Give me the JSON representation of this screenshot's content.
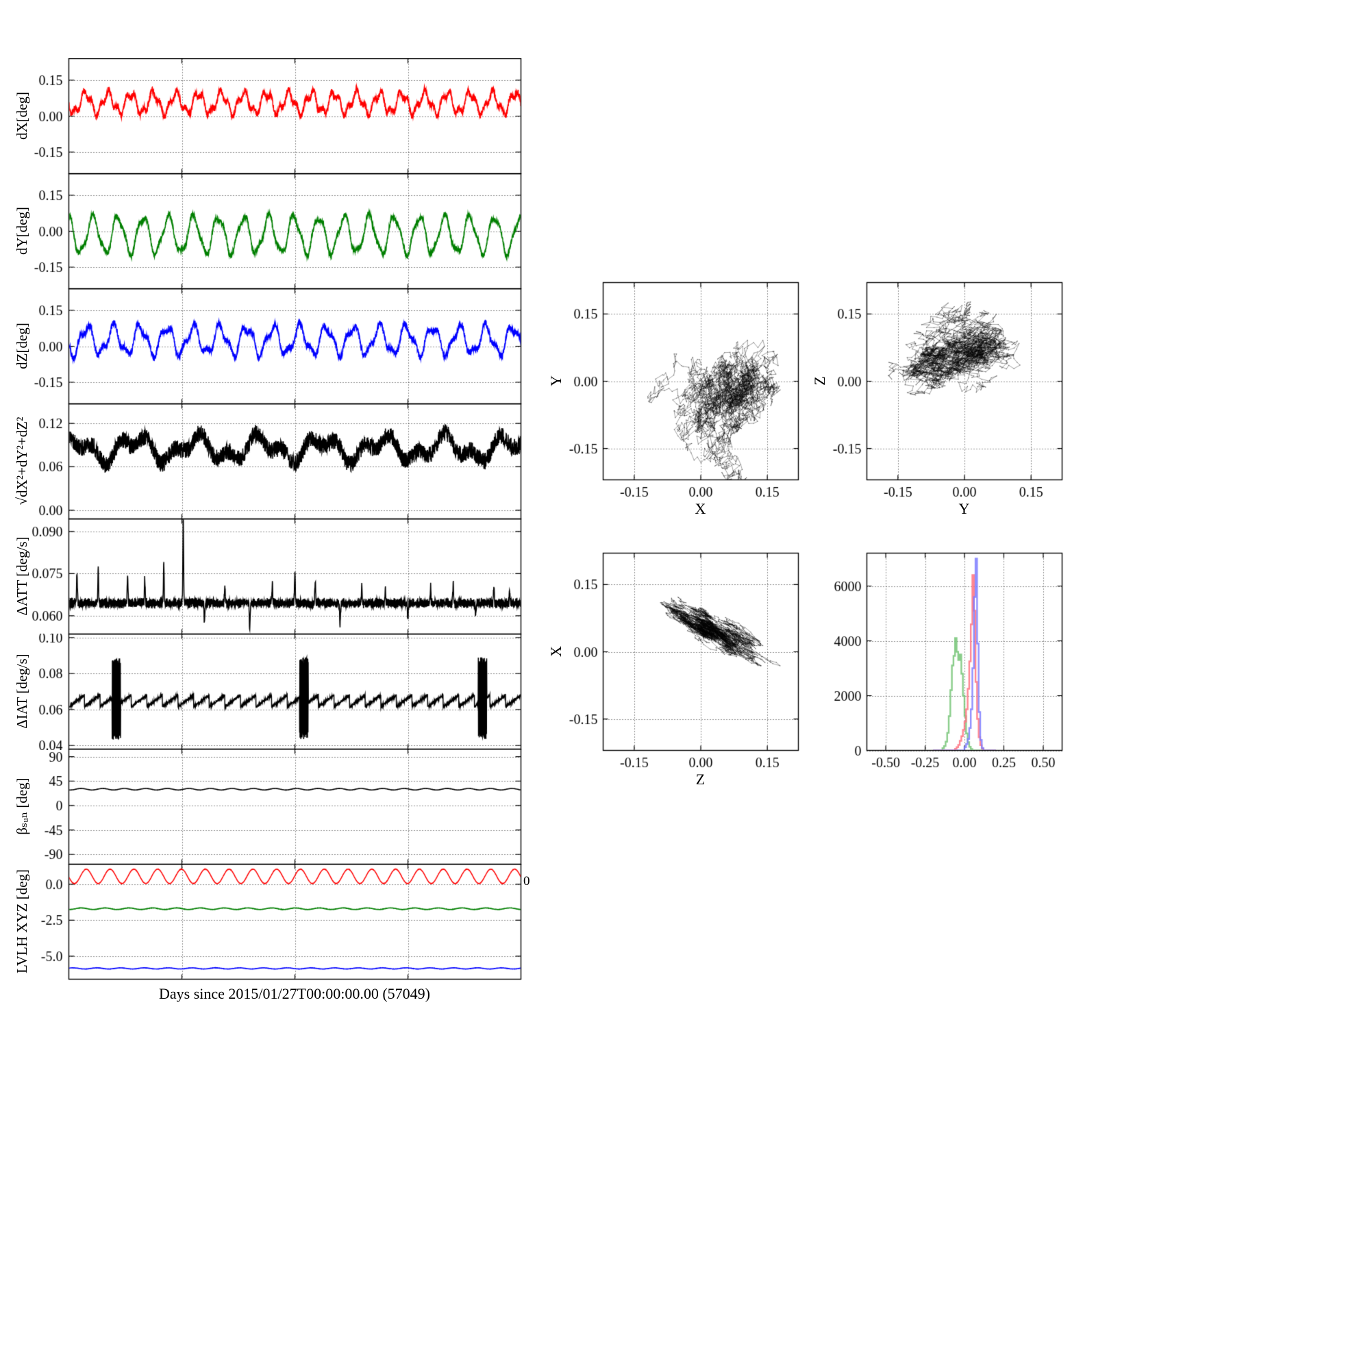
{
  "figure": {
    "xlabel_time": "Days since 2015/01/27T00:00:00.00 (57049)",
    "background": "#ffffff"
  },
  "chart_data": {
    "type": "multi-panel",
    "description": "Attitude difference time series (8 stacked panels), 3 scatter projections, 1 histogram",
    "time_panels": [
      {
        "name": "dX",
        "ylabel": "dX[deg]",
        "ylim": [
          -0.24,
          0.24
        ],
        "yticks": [
          [
            0.15,
            "0.15"
          ],
          [
            0.0,
            "0.00"
          ],
          [
            -0.15,
            "-0.15"
          ]
        ],
        "series": [
          {
            "name": "dX",
            "color": "#ff0000",
            "gen": {
              "type": "osc",
              "seed": 11,
              "base": 0.055,
              "amp": 0.04,
              "cycles": 20,
              "amp2": 0.018,
              "cycles2": 53,
              "noise": 0.012
            }
          }
        ]
      },
      {
        "name": "dY",
        "ylabel": "dY[deg]",
        "ylim": [
          -0.24,
          0.24
        ],
        "yticks": [
          [
            0.15,
            "0.15"
          ],
          [
            0.0,
            "0.00"
          ],
          [
            -0.15,
            "-0.15"
          ]
        ],
        "series": [
          {
            "name": "dY",
            "color": "#007f00",
            "gen": {
              "type": "osc",
              "seed": 12,
              "base": -0.015,
              "amp": 0.075,
              "cycles": 18,
              "amp2": 0.015,
              "cycles2": 41,
              "noise": 0.01
            }
          }
        ]
      },
      {
        "name": "dZ",
        "ylabel": "dZ[deg]",
        "ylim": [
          -0.24,
          0.24
        ],
        "yticks": [
          [
            0.15,
            "0.15"
          ],
          [
            0.0,
            "0.00"
          ],
          [
            -0.15,
            "-0.15"
          ]
        ],
        "series": [
          {
            "name": "dZ",
            "color": "#0000ff",
            "gen": {
              "type": "osc",
              "seed": 13,
              "base": 0.025,
              "amp": 0.055,
              "cycles": 17,
              "amp2": 0.02,
              "cycles2": 39,
              "noise": 0.012
            }
          }
        ]
      },
      {
        "name": "magnitude",
        "ylabel": "√dX²+dY²+dZ²",
        "ylim": [
          -0.012,
          0.147
        ],
        "yticks": [
          [
            0.12,
            "0.12"
          ],
          [
            0.06,
            "0.06"
          ],
          [
            0.0,
            "0.00"
          ]
        ],
        "series": [
          {
            "name": "magnitude",
            "color": "#000000",
            "gen": {
              "type": "band",
              "seed": 17,
              "base": 0.085,
              "noise": 0.012,
              "w1": 0.013,
              "c1": 7.3,
              "w2": 0.009,
              "c2": 16.7
            }
          }
        ]
      },
      {
        "name": "delta-att",
        "ylabel": "ΔATT [deg/s]",
        "ylim": [
          0.0535,
          0.0945
        ],
        "yticks": [
          [
            0.09,
            "0.090"
          ],
          [
            0.075,
            "0.075"
          ],
          [
            0.06,
            "0.060"
          ]
        ],
        "series": [
          {
            "name": "dATT",
            "color": "#000000",
            "gen": {
              "type": "spiky",
              "seed": 23,
              "base": 0.0645,
              "noise": 0.001,
              "ripple": 0.0009,
              "rippleC": 420,
              "spikeW": 0.0012,
              "spikes": [
                [
                  0.018,
                  0.011
                ],
                [
                  0.065,
                  0.012
                ],
                [
                  0.13,
                  0.01
                ],
                [
                  0.168,
                  0.009
                ],
                [
                  0.21,
                  0.014
                ],
                [
                  0.253,
                  0.03
                ],
                [
                  0.3,
                  -0.007
                ],
                [
                  0.345,
                  0.006
                ],
                [
                  0.4,
                  -0.01
                ],
                [
                  0.45,
                  0.007
                ],
                [
                  0.5,
                  0.012
                ],
                [
                  0.545,
                  0.008
                ],
                [
                  0.6,
                  -0.008
                ],
                [
                  0.648,
                  0.006
                ],
                [
                  0.7,
                  0.005
                ],
                [
                  0.75,
                  -0.006
                ],
                [
                  0.8,
                  0.006
                ],
                [
                  0.85,
                  0.007
                ],
                [
                  0.9,
                  -0.005
                ],
                [
                  0.94,
                  0.006
                ],
                [
                  0.975,
                  0.005
                ]
              ]
            }
          }
        ]
      },
      {
        "name": "delta-iat",
        "ylabel": "ΔIAT [deg/s]",
        "ylim": [
          0.038,
          0.102
        ],
        "yticks": [
          [
            0.1,
            "0.10"
          ],
          [
            0.08,
            "0.08"
          ],
          [
            0.06,
            "0.06"
          ],
          [
            0.04,
            "0.04"
          ]
        ],
        "series": [
          {
            "name": "dIAT",
            "color": "#000000",
            "gen": {
              "type": "sawburst",
              "seed": 29,
              "base": 0.0615,
              "tooth": 0.0065,
              "period": 0.0345,
              "noise": 0.0006,
              "bursts": [
                0.105,
                0.52,
                0.915
              ],
              "burstW": 0.0095,
              "lo": 0.0435,
              "hi": 0.089
            }
          }
        ]
      },
      {
        "name": "beta-sun",
        "ylabel": "βₛᵤₙ [deg]",
        "ylim": [
          -108,
          104
        ],
        "yticks": [
          [
            90,
            "90"
          ],
          [
            45,
            "45"
          ],
          [
            0,
            "0"
          ],
          [
            -45,
            "-45"
          ],
          [
            -90,
            "-90"
          ]
        ],
        "series": [
          {
            "name": "beta_sun",
            "color": "#000000",
            "gen": {
              "type": "osc",
              "seed": 31,
              "base": 30,
              "amp": 1.4,
              "cycles": 21,
              "amp2": 0,
              "cycles2": 0,
              "noise": 0.15
            }
          }
        ]
      },
      {
        "name": "lvlh-xyz",
        "ylabel": "LVLH XYZ [deg]",
        "ylim": [
          -6.6,
          1.4
        ],
        "yticks": [
          [
            0.0,
            "0.0"
          ],
          [
            -2.5,
            "-2.5"
          ],
          [
            -5.0,
            "-5.0"
          ]
        ],
        "right_label": "0",
        "series": [
          {
            "name": "lvlh_x",
            "color": "#ff0000",
            "gen": {
              "type": "osc",
              "seed": 37,
              "base": 0.55,
              "amp": 0.5,
              "cycles": 19,
              "amp2": 0,
              "cycles2": 0,
              "noise": 0.012
            }
          },
          {
            "name": "lvlh_y",
            "color": "#007f00",
            "gen": {
              "type": "osc",
              "seed": 38,
              "base": -1.7,
              "amp": 0.055,
              "cycles": 19,
              "amp2": 0,
              "cycles2": 0,
              "noise": 0.01
            }
          },
          {
            "name": "lvlh_z",
            "color": "#0000ff",
            "gen": {
              "type": "osc",
              "seed": 39,
              "base": -5.85,
              "amp": 0.04,
              "cycles": 19,
              "amp2": 0,
              "cycles2": 0,
              "noise": 0.008
            }
          }
        ]
      }
    ],
    "scatter_panels": [
      {
        "name": "y-vs-x",
        "xlabel": "X",
        "ylabel": "Y",
        "xlim": [
          -0.22,
          0.22
        ],
        "ylim": [
          -0.22,
          0.22
        ],
        "xticks": [
          [
            -0.15,
            "-0.15"
          ],
          [
            0.0,
            "0.00"
          ],
          [
            0.15,
            "0.15"
          ]
        ],
        "yticks": [
          [
            0.15,
            "0.15"
          ],
          [
            0.0,
            "0.00"
          ],
          [
            -0.15,
            "-0.15"
          ]
        ],
        "cluster": {
          "seed": 41,
          "cx": 0.055,
          "cy": -0.04,
          "su": 0.055,
          "sv": 0.04,
          "angle": 75,
          "n": 2800,
          "color": "#000000"
        }
      },
      {
        "name": "z-vs-y",
        "xlabel": "Y",
        "ylabel": "Z",
        "xlim": [
          -0.22,
          0.22
        ],
        "ylim": [
          -0.22,
          0.22
        ],
        "xticks": [
          [
            -0.15,
            "-0.15"
          ],
          [
            0.0,
            "0.00"
          ],
          [
            0.15,
            "0.15"
          ]
        ],
        "yticks": [
          [
            0.15,
            "0.15"
          ],
          [
            0.0,
            "0.00"
          ],
          [
            -0.15,
            "-0.15"
          ]
        ],
        "cluster": {
          "seed": 43,
          "cx": -0.025,
          "cy": 0.05,
          "su": 0.06,
          "sv": 0.038,
          "angle": 15,
          "n": 2800,
          "color": "#000000"
        }
      },
      {
        "name": "x-vs-z",
        "xlabel": "Z",
        "ylabel": "X",
        "xlim": [
          -0.22,
          0.22
        ],
        "ylim": [
          -0.22,
          0.22
        ],
        "xticks": [
          [
            -0.15,
            "-0.15"
          ],
          [
            0.0,
            "0.00"
          ],
          [
            0.15,
            "0.15"
          ]
        ],
        "yticks": [
          [
            0.15,
            "0.15"
          ],
          [
            0.0,
            "0.00"
          ],
          [
            -0.15,
            "-0.15"
          ]
        ],
        "cluster": {
          "seed": 47,
          "cx": 0.03,
          "cy": 0.05,
          "su": 0.06,
          "sv": 0.015,
          "angle": -32,
          "n": 2800,
          "color": "#000000"
        }
      }
    ],
    "histogram": {
      "name": "component-histogram",
      "xlim": [
        -0.62,
        0.62
      ],
      "ylim": [
        0,
        7200
      ],
      "xticks": [
        [
          -0.5,
          "-0.50"
        ],
        [
          -0.25,
          "-0.25"
        ],
        [
          0.0,
          "0.00"
        ],
        [
          0.25,
          "0.25"
        ],
        [
          0.5,
          "0.50"
        ]
      ],
      "yticks": [
        [
          0,
          "0"
        ],
        [
          2000,
          "2000"
        ],
        [
          4000,
          "4000"
        ],
        [
          6000,
          "6000"
        ]
      ],
      "bin_start": -0.2,
      "bin_width": 0.01,
      "series": [
        {
          "name": "dY",
          "color": "#74c476",
          "counts": [
            0,
            0,
            0,
            0,
            0,
            0,
            80,
            160,
            320,
            640,
            1250,
            2200,
            3100,
            3450,
            4100,
            3600,
            3300,
            3500,
            2800,
            2000,
            1250,
            620,
            300,
            130,
            50,
            0,
            0,
            0,
            0,
            0,
            0,
            0,
            0,
            0,
            0,
            0,
            0,
            0,
            0,
            0
          ]
        },
        {
          "name": "dX",
          "color": "#ff707e",
          "counts": [
            0,
            0,
            0,
            0,
            0,
            0,
            0,
            0,
            0,
            0,
            0,
            0,
            0,
            0,
            60,
            120,
            200,
            350,
            520,
            750,
            1050,
            1500,
            2250,
            3250,
            4600,
            6400,
            5100,
            2500,
            1150,
            480,
            190,
            70,
            0,
            0,
            0,
            0,
            0,
            0,
            0,
            0
          ]
        },
        {
          "name": "dZ",
          "color": "#7b7bff",
          "counts": [
            0,
            0,
            0,
            0,
            0,
            0,
            0,
            0,
            0,
            0,
            0,
            0,
            0,
            0,
            0,
            0,
            0,
            0,
            0,
            0,
            120,
            230,
            420,
            820,
            1500,
            3000,
            5600,
            7000,
            3900,
            1400,
            380,
            90,
            0,
            0,
            0,
            0,
            0,
            0,
            0,
            0
          ]
        }
      ]
    }
  }
}
